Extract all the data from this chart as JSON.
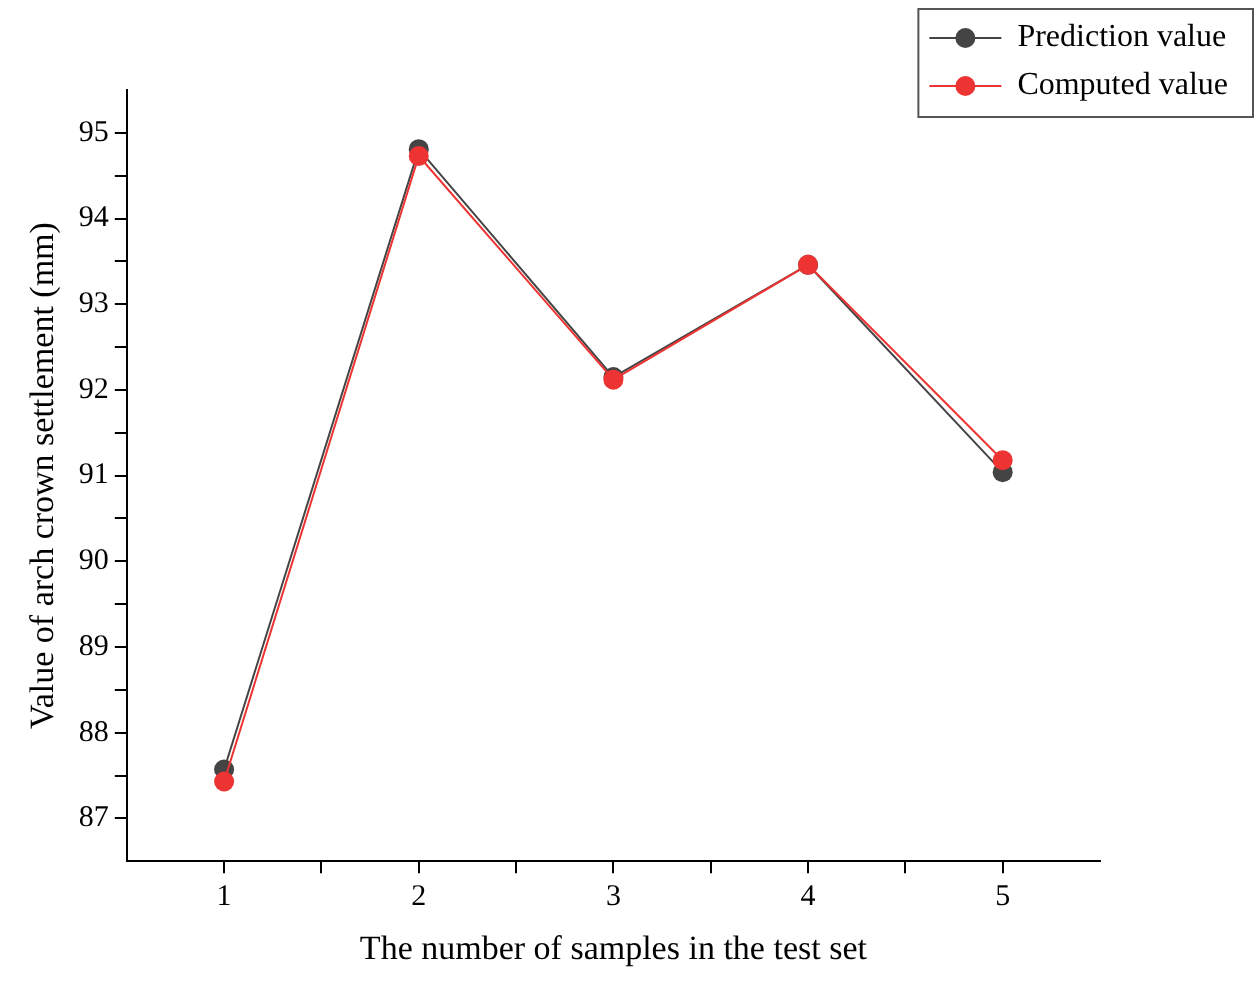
{
  "chart_data": {
    "type": "line",
    "xlabel": "The number of samples in the test set",
    "ylabel": "Value of arch crown settlement (mm)",
    "x": [
      1,
      2,
      3,
      4,
      5
    ],
    "series": [
      {
        "name": "Prediction value",
        "color": "#444444",
        "values": [
          87.57,
          94.81,
          92.15,
          93.46,
          91.04
        ]
      },
      {
        "name": "Computed value",
        "color": "#ee3333",
        "values": [
          87.43,
          94.73,
          92.12,
          93.46,
          91.18
        ]
      }
    ],
    "xlim": [
      0.5,
      5.5
    ],
    "xticks": [
      1,
      {
        "value": 1.5,
        "label": null
      },
      2,
      {
        "value": 2.5,
        "label": null
      },
      3,
      {
        "value": 3.5,
        "label": null
      },
      4,
      {
        "value": 4.5,
        "label": null
      },
      5
    ],
    "ylim": [
      86.5,
      95.5
    ],
    "yticks": [
      87,
      {
        "value": 87.5,
        "label": null
      },
      88,
      {
        "value": 88.5,
        "label": null
      },
      89,
      {
        "value": 89.5,
        "label": null
      },
      90,
      {
        "value": 90.5,
        "label": null
      },
      91,
      {
        "value": 91.5,
        "label": null
      },
      92,
      {
        "value": 92.5,
        "label": null
      },
      93,
      {
        "value": 93.5,
        "label": null
      },
      94,
      {
        "value": 94.5,
        "label": null
      },
      95
    ],
    "grid": false,
    "legend": "top right",
    "marker": "circle",
    "line_style": "solid"
  }
}
